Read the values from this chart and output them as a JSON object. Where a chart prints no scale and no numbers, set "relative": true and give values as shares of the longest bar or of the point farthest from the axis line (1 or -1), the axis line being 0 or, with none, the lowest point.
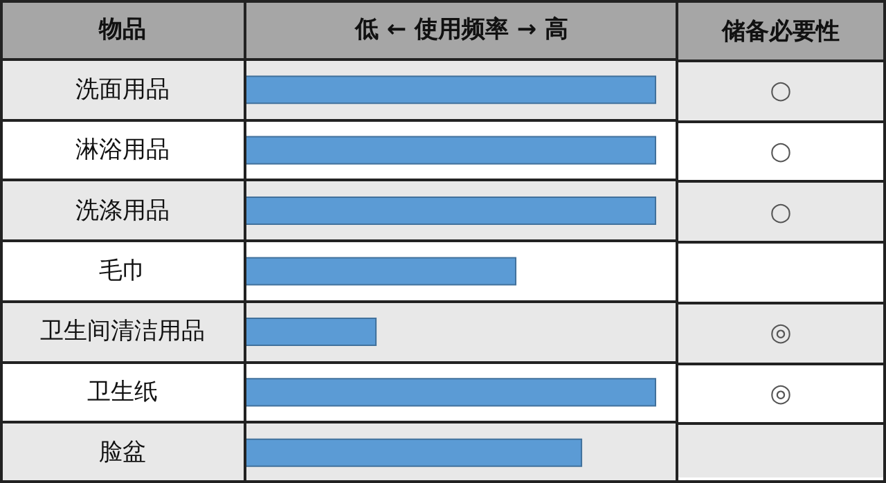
{
  "chart_data": [
    {
      "type": "bar",
      "orientation": "horizontal",
      "relative": true,
      "ylabel": "物品",
      "xlabel": "低 ← 使用频率 → 高",
      "categories": [
        "洗面用品",
        "淋浴用品",
        "洗涤用品",
        "毛巾",
        "卫生间清洁用品",
        "卫生纸",
        "脸盆"
      ],
      "values": [
        1,
        1,
        1,
        0.66,
        0.32,
        1,
        0.82
      ],
      "color": "#5b9bd5"
    },
    {
      "type": "other",
      "title": "储备必要性",
      "categories": [
        "○",
        "○",
        "○",
        null,
        "◎",
        "◎",
        null
      ]
    }
  ]
}
